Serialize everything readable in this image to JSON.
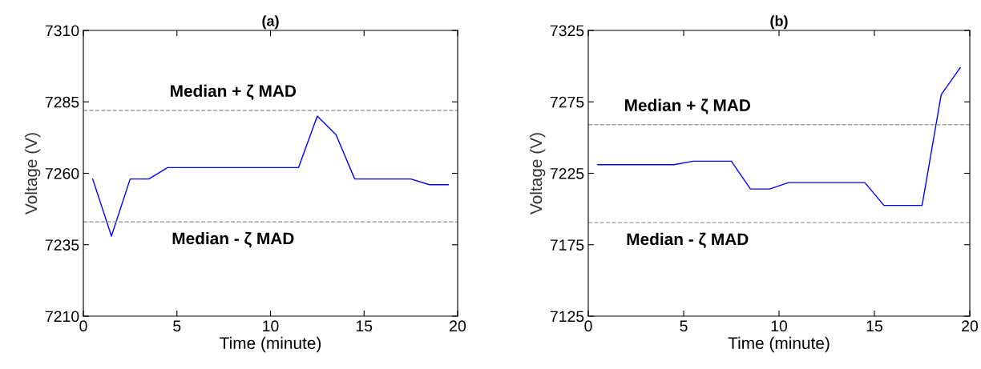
{
  "chart_data": [
    {
      "type": "line",
      "title": "(a)",
      "xlabel": "Time (minute)",
      "ylabel": "Voltage (V)",
      "x": [
        0.5,
        1.5,
        2.5,
        3.5,
        4.5,
        5.5,
        6.5,
        7.5,
        8.5,
        9.5,
        10.5,
        11.5,
        12.5,
        13.5,
        14.5,
        15.5,
        16.5,
        17.5,
        18.5,
        19.5
      ],
      "series": [
        {
          "color": "#0000ff",
          "values": [
            7258,
            7238,
            7258,
            7258,
            7262,
            7262,
            7262,
            7262,
            7262,
            7262,
            7262,
            7262,
            7280,
            7273.5,
            7258,
            7258,
            7258,
            7258,
            7256,
            7256
          ]
        }
      ],
      "xlim": [
        0,
        20
      ],
      "xticks": [
        0,
        5,
        10,
        15,
        20
      ],
      "ylim": [
        7210,
        7310
      ],
      "yticks": [
        7210,
        7235,
        7260,
        7285,
        7310
      ],
      "ref_lines": [
        {
          "axis": "y",
          "value": 7282,
          "color": "#a0a0a0",
          "line_style": "dashed",
          "label": "Median + ζ MAD"
        },
        {
          "axis": "y",
          "value": 7243,
          "color": "#a0a0a0",
          "line_style": "dashed",
          "label": "Median - ζ MAD"
        }
      ],
      "grid": false,
      "legend": false
    },
    {
      "type": "line",
      "title": "(b)",
      "xlabel": "Time (minute)",
      "ylabel": "Voltage (V)",
      "x": [
        0.5,
        1.5,
        2.5,
        3.5,
        4.5,
        5.5,
        6.5,
        7.5,
        8.5,
        9.5,
        10.5,
        11.5,
        12.5,
        13.5,
        14.5,
        15.5,
        16.5,
        17.5,
        18.5,
        19.5
      ],
      "series": [
        {
          "color": "#0000ff",
          "values": [
            7231,
            7231,
            7231,
            7231,
            7231,
            7233.5,
            7233.5,
            7233.5,
            7214,
            7214,
            7218.5,
            7218.5,
            7218.5,
            7218.5,
            7218.5,
            7202.5,
            7202.5,
            7202.5,
            7280,
            7299
          ]
        }
      ],
      "xlim": [
        0,
        20
      ],
      "xticks": [
        0,
        5,
        10,
        15,
        20
      ],
      "ylim": [
        7125,
        7325
      ],
      "yticks": [
        7125,
        7175,
        7225,
        7275,
        7325
      ],
      "ref_lines": [
        {
          "axis": "y",
          "value": 7259,
          "color": "#a0a0a0",
          "line_style": "dashed",
          "label": "Median + ζ MAD"
        },
        {
          "axis": "y",
          "value": 7190.5,
          "color": "#a0a0a0",
          "line_style": "dashed",
          "label": "Median - ζ MAD"
        }
      ],
      "grid": false,
      "legend": false
    }
  ]
}
